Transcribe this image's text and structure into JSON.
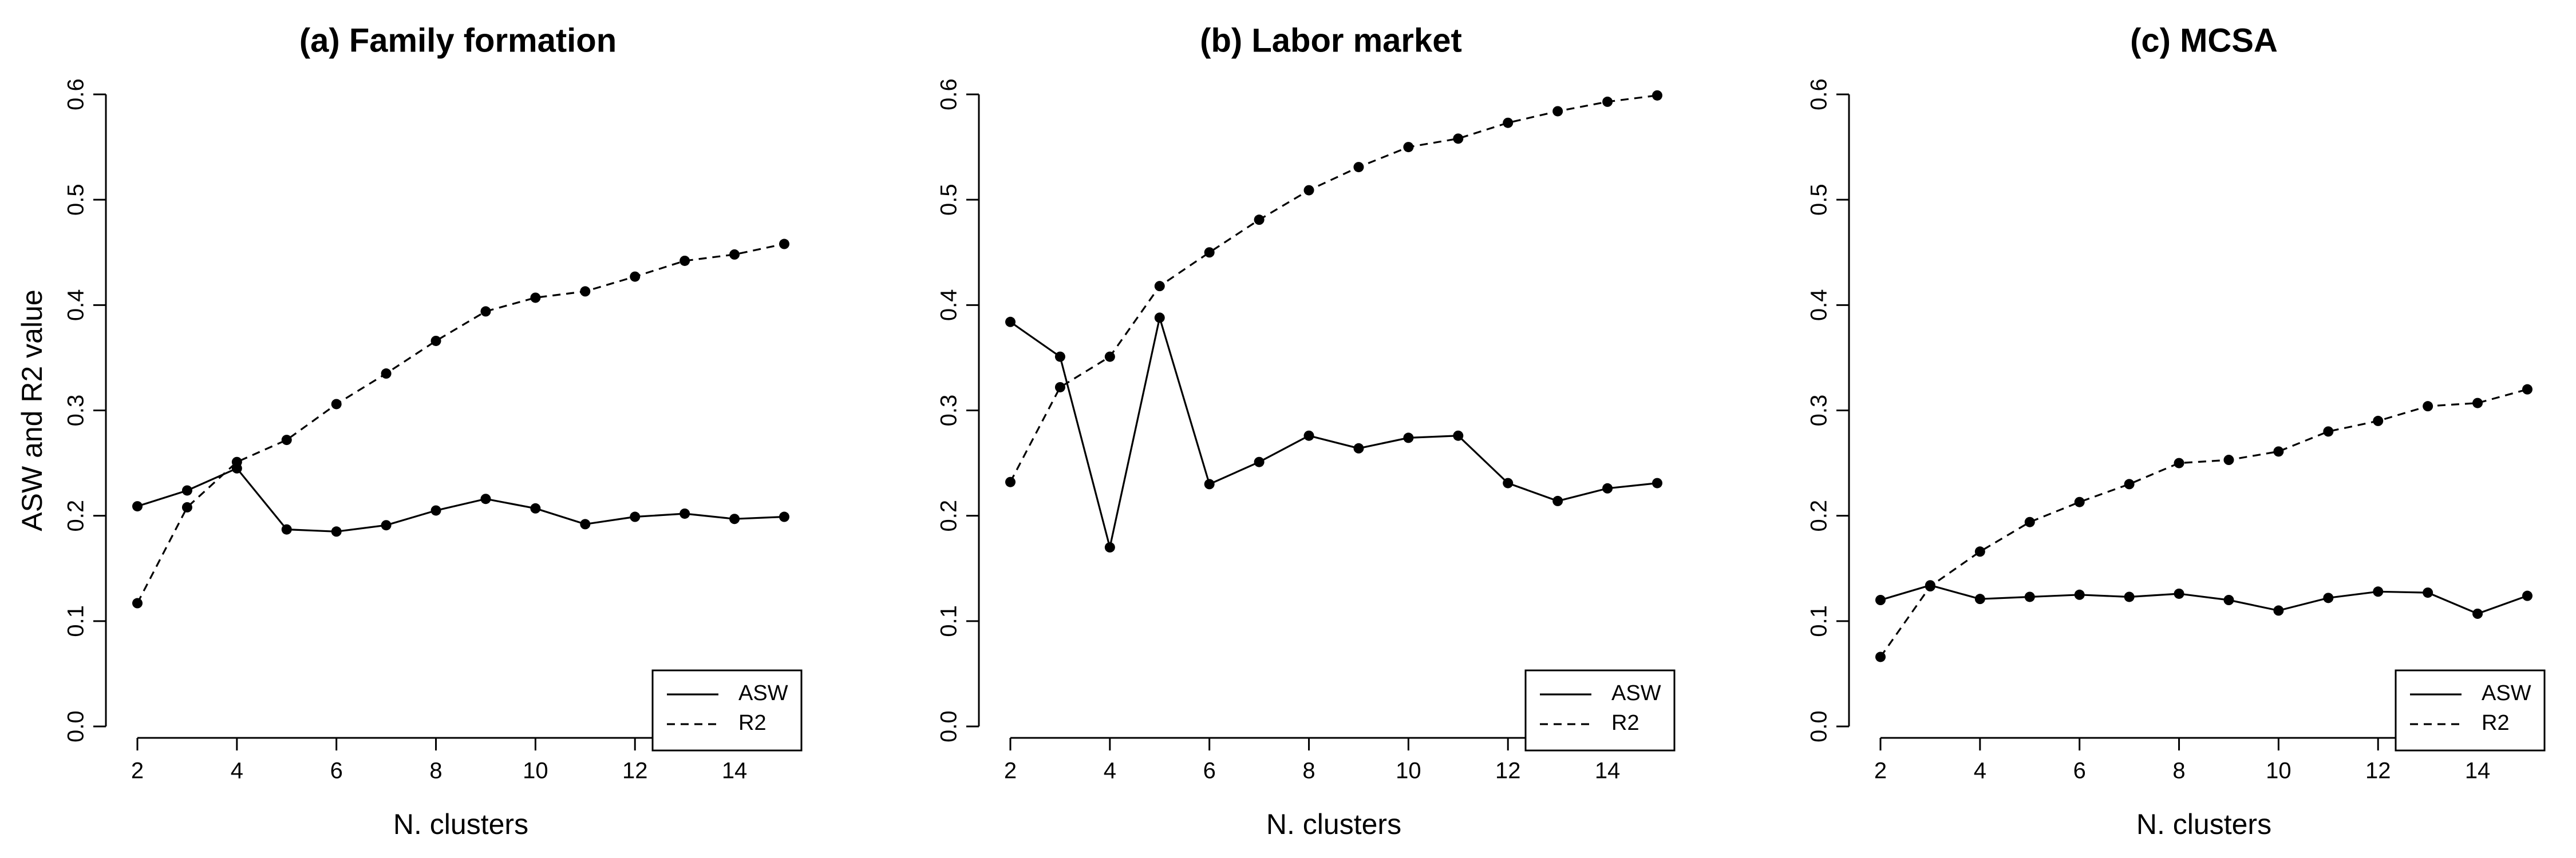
{
  "chart_data": [
    {
      "type": "line",
      "title": "(a) Family formation",
      "xlabel": "N. clusters",
      "ylabel": "ASW and R2 value",
      "xlim": [
        2,
        15
      ],
      "ylim": [
        0.0,
        0.6
      ],
      "x": [
        2,
        3,
        4,
        5,
        6,
        7,
        8,
        9,
        10,
        11,
        12,
        13,
        14,
        15
      ],
      "x_ticks": [
        "2",
        "4",
        "6",
        "8",
        "10",
        "12",
        "14"
      ],
      "y_ticks": [
        "0.0",
        "0.1",
        "0.2",
        "0.3",
        "0.4",
        "0.5",
        "0.6"
      ],
      "series": [
        {
          "name": "ASW",
          "style": "solid",
          "values": [
            0.209,
            0.224,
            0.245,
            0.187,
            0.185,
            0.191,
            0.205,
            0.216,
            0.207,
            0.192,
            0.199,
            0.202,
            0.197,
            0.199
          ]
        },
        {
          "name": "R2",
          "style": "dashed",
          "values": [
            0.117,
            0.208,
            0.251,
            0.272,
            0.306,
            0.335,
            0.366,
            0.394,
            0.407,
            0.413,
            0.427,
            0.442,
            0.448,
            0.458
          ]
        }
      ],
      "legend_position": "bottom-right"
    },
    {
      "type": "line",
      "title": "(b) Labor market",
      "xlabel": "N. clusters",
      "ylabel": "",
      "xlim": [
        2,
        15
      ],
      "ylim": [
        0.0,
        0.6
      ],
      "x": [
        2,
        3,
        4,
        5,
        6,
        7,
        8,
        9,
        10,
        11,
        12,
        13,
        14,
        15
      ],
      "x_ticks": [
        "2",
        "4",
        "6",
        "8",
        "10",
        "12",
        "14"
      ],
      "y_ticks": [
        "0.0",
        "0.1",
        "0.2",
        "0.3",
        "0.4",
        "0.5",
        "0.6"
      ],
      "series": [
        {
          "name": "ASW",
          "style": "solid",
          "values": [
            0.384,
            0.351,
            0.17,
            0.388,
            0.23,
            0.251,
            0.276,
            0.264,
            0.274,
            0.276,
            0.231,
            0.214,
            0.226,
            0.231
          ]
        },
        {
          "name": "R2",
          "style": "dashed",
          "values": [
            0.232,
            0.322,
            0.351,
            0.418,
            0.45,
            0.481,
            0.509,
            0.531,
            0.55,
            0.558,
            0.573,
            0.584,
            0.593,
            0.599
          ]
        }
      ],
      "legend_position": "bottom-right"
    },
    {
      "type": "line",
      "title": "(c) MCSA",
      "xlabel": "N. clusters",
      "ylabel": "",
      "xlim": [
        2,
        15
      ],
      "ylim": [
        0.0,
        0.6
      ],
      "x": [
        2,
        3,
        4,
        5,
        6,
        7,
        8,
        9,
        10,
        11,
        12,
        13,
        14,
        15
      ],
      "x_ticks": [
        "2",
        "4",
        "6",
        "8",
        "10",
        "12",
        "14"
      ],
      "y_ticks": [
        "0.0",
        "0.1",
        "0.2",
        "0.3",
        "0.4",
        "0.5",
        "0.6"
      ],
      "series": [
        {
          "name": "ASW",
          "style": "solid",
          "values": [
            0.12,
            0.134,
            0.121,
            0.123,
            0.125,
            0.123,
            0.126,
            0.12,
            0.11,
            0.122,
            0.128,
            0.127,
            0.107,
            0.124
          ]
        },
        {
          "name": "R2",
          "style": "dashed",
          "values": [
            0.066,
            0.133,
            0.166,
            0.194,
            0.213,
            0.23,
            0.25,
            0.253,
            0.261,
            0.28,
            0.29,
            0.304,
            0.307,
            0.32
          ]
        }
      ],
      "legend_position": "bottom-right"
    }
  ]
}
